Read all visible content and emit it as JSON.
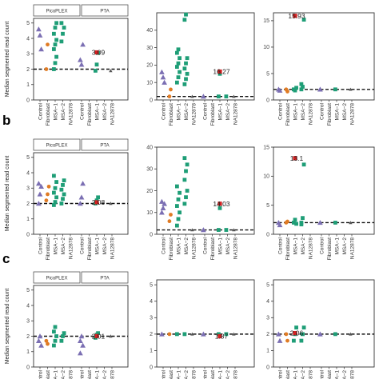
{
  "chart_data": {
    "type": "scatter",
    "shared": {
      "ylabel": "Median segmented read count",
      "categories": [
        "Control",
        "Fibroblast",
        "MSA−1",
        "MSA−2",
        "NA12878"
      ],
      "facets": [
        "PicoPLEX",
        "PTA"
      ],
      "reference_line": 2,
      "colors": {
        "Control": "#7b6fb3",
        "Fibroblast": "#e07b24",
        "MSA−1": "#1f9e77",
        "MSA−2": "#1f9e77",
        "NA12878": "#555555",
        "highlight": "#d62020"
      },
      "markers": {
        "Control": "triangle",
        "Fibroblast": "circle",
        "MSA−1": "square",
        "MSA−2": "square",
        "NA12878": "triangle-small"
      }
    },
    "rows": [
      {
        "label": "",
        "panels": [
          {
            "ylim": [
              0,
              5.3
            ],
            "yticks": [
              0,
              1,
              2,
              3,
              4,
              5
            ],
            "facets_shown": true,
            "picoplex": {
              "Control": [
                4.6,
                4.2,
                3.3
              ],
              "Fibroblast": [
                2.0,
                3.6
              ],
              "MSA−1": [
                2.0,
                2.4,
                2.8,
                3.3,
                3.6,
                3.9,
                4.3,
                4.7,
                5.0
              ],
              "MSA−2": [
                3.8,
                4.3,
                4.7,
                5.0
              ],
              "NA12878": []
            },
            "pta": {
              "Control": [
                2.6,
                2.3,
                3.6
              ],
              "Fibroblast": [],
              "MSA−1": [
                1.9,
                2.3,
                3.05
              ],
              "MSA−2": [],
              "NA12878": [
                1.9
              ]
            },
            "highlight": {
              "facet": "pta",
              "category": "MSA−1",
              "value": 3.09,
              "label": "3.09"
            }
          },
          {
            "ylim": [
              0,
              50
            ],
            "yticks": [
              0,
              10,
              20,
              30,
              40
            ],
            "facets_shown": false,
            "picoplex": {
              "Control": [
                16,
                13,
                10
              ],
              "Fibroblast": [
                2,
                6
              ],
              "MSA−1": [
                10,
                13,
                16,
                19,
                21,
                24,
                27,
                29
              ],
              "MSA−2": [
                9,
                12,
                15,
                18,
                21,
                24,
                46,
                49
              ],
              "NA12878": [
                2
              ]
            },
            "pta": {
              "Control": [
                2
              ],
              "Fibroblast": [],
              "MSA−1": [
                2,
                15
              ],
              "MSA−2": [
                2
              ],
              "NA12878": [
                2
              ]
            },
            "highlight": {
              "facet": "pta",
              "category": "MSA−1",
              "value": 16.27,
              "label": "16.27"
            }
          },
          {
            "ylim": [
              0,
              16.5
            ],
            "yticks": [
              0,
              5,
              10,
              15
            ],
            "facets_shown": false,
            "picoplex": {
              "Control": [
                2,
                1.8
              ],
              "Fibroblast": [
                2,
                1.6
              ],
              "MSA−1": [
                2,
                1.8,
                2.3
              ],
              "MSA−2": [
                2,
                2.5,
                15.2,
                3.0
              ],
              "NA12878": []
            },
            "pta": {
              "Control": [
                2
              ],
              "Fibroblast": [],
              "MSA−1": [
                2
              ],
              "MSA−2": [],
              "NA12878": [
                2
              ]
            },
            "highlight": {
              "facet": "picoplex",
              "category": "MSA−1",
              "value": 15.93,
              "label": "15.93"
            }
          }
        ]
      },
      {
        "label": "b",
        "panels": [
          {
            "ylim": [
              0,
              5.3
            ],
            "yticks": [
              0,
              1,
              2,
              3,
              4,
              5
            ],
            "facets_shown": true,
            "picoplex": {
              "Control": [
                2.0,
                2.6,
                3.1,
                3.3
              ],
              "Fibroblast": [
                2.2,
                2.6,
                3.1
              ],
              "MSA−1": [
                1.9,
                2.1,
                2.4,
                2.7,
                3.0,
                3.4,
                3.8
              ],
              "MSA−2": [
                2.0,
                2.3,
                2.6,
                2.9,
                3.2,
                3.5
              ],
              "NA12878": []
            },
            "pta": {
              "Control": [
                2.0,
                2.4,
                3.3
              ],
              "Fibroblast": [],
              "MSA−1": [
                2.0,
                2.2,
                2.4
              ],
              "MSA−2": [],
              "NA12878": [
                2.0
              ]
            },
            "highlight": {
              "facet": "pta",
              "category": "MSA−1",
              "value": 2.08,
              "label": "2.08"
            }
          },
          {
            "ylim": [
              0,
              40
            ],
            "yticks": [
              0,
              10,
              20,
              30,
              40
            ],
            "facets_shown": false,
            "picoplex": {
              "Control": [
                10,
                12,
                14,
                15
              ],
              "Fibroblast": [
                6,
                9
              ],
              "MSA−1": [
                4,
                7,
                10,
                13,
                16,
                19,
                22
              ],
              "MSA−2": [
                14,
                17,
                20,
                25,
                29,
                32,
                35
              ],
              "NA12878": [
                2
              ]
            },
            "pta": {
              "Control": [
                2
              ],
              "Fibroblast": [],
              "MSA−1": [
                2,
                12
              ],
              "MSA−2": [
                2
              ],
              "NA12878": [
                2
              ]
            },
            "highlight": {
              "facet": "pta",
              "category": "MSA−1",
              "value": 14.03,
              "label": "14.03"
            }
          },
          {
            "ylim": [
              0,
              15
            ],
            "yticks": [
              0,
              5,
              10,
              15
            ],
            "facets_shown": false,
            "picoplex": {
              "Control": [
                2,
                1.6
              ],
              "Fibroblast": [
                2,
                2.2
              ],
              "MSA−1": [
                2,
                2.5,
                1.8
              ],
              "MSA−2": [
                2,
                2.8,
                12,
                1.7
              ],
              "NA12878": []
            },
            "pta": {
              "Control": [
                2
              ],
              "Fibroblast": [],
              "MSA−1": [
                2
              ],
              "MSA−2": [],
              "NA12878": [
                2
              ]
            },
            "highlight": {
              "facet": "picoplex",
              "category": "MSA−1",
              "value": 13.1,
              "label": "13.1"
            }
          }
        ]
      },
      {
        "label": "c",
        "panels": [
          {
            "ylim": [
              0,
              5.3
            ],
            "yticks": [
              0,
              1,
              2,
              3,
              4,
              5
            ],
            "facets_shown": true,
            "picoplex": {
              "Control": [
                1.7,
                2.0,
                1.4
              ],
              "Fibroblast": [
                1.7,
                1.5
              ],
              "MSA−1": [
                1.4,
                1.7,
                2.0,
                2.3,
                2.6
              ],
              "MSA−2": [
                1.7,
                2.0,
                2.2
              ],
              "NA12878": []
            },
            "pta": {
              "Control": [
                1.7,
                2.0,
                1.4,
                0.9
              ],
              "Fibroblast": [],
              "MSA−1": [
                1.9,
                2.1,
                2.2
              ],
              "MSA−2": [],
              "NA12878": [
                2.0
              ]
            },
            "highlight": {
              "facet": "pta",
              "category": "MSA−1",
              "value": 2.01,
              "label": "2.01"
            }
          },
          {
            "ylim": [
              0,
              5.3
            ],
            "yticks": [
              0,
              1,
              2,
              3,
              4,
              5
            ],
            "facets_shown": false,
            "picoplex": {
              "Control": [
                2.0
              ],
              "Fibroblast": [
                2.0
              ],
              "MSA−1": [
                2.0
              ],
              "MSA−2": [
                2.0
              ],
              "NA12878": [
                2.0
              ]
            },
            "pta": {
              "Control": [
                2.0
              ],
              "Fibroblast": [],
              "MSA−1": [
                2.0
              ],
              "MSA−2": [
                2.0
              ],
              "NA12878": [
                2.0
              ]
            },
            "highlight": {
              "facet": "pta",
              "category": "MSA−1",
              "value": 1.87,
              "label": "1.87"
            }
          },
          {
            "ylim": [
              0,
              5.3
            ],
            "yticks": [
              0,
              1,
              2,
              3,
              4,
              5
            ],
            "facets_shown": false,
            "picoplex": {
              "Control": [
                2,
                1.6
              ],
              "Fibroblast": [
                2,
                1.6
              ],
              "MSA−1": [
                1.6,
                2.0,
                2.4
              ],
              "MSA−2": [
                1.6,
                2.0,
                2.4
              ],
              "NA12878": []
            },
            "pta": {
              "Control": [
                2
              ],
              "Fibroblast": [],
              "MSA−1": [
                2
              ],
              "MSA−2": [],
              "NA12878": [
                2
              ]
            },
            "highlight": {
              "facet": "picoplex",
              "category": "MSA−1",
              "value": 2.06,
              "label": "2.06"
            }
          }
        ]
      }
    ]
  }
}
